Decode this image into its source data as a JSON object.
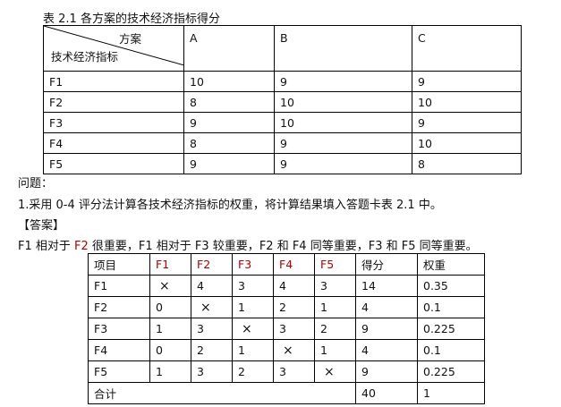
{
  "caption": "表 2.1   各方案的技术经济指标得分",
  "table1": {
    "corner_top": "方案",
    "corner_bottom": "技术经济指标",
    "columns": [
      "A",
      "B",
      "C"
    ],
    "rows": [
      [
        "F1",
        "10",
        "9",
        "9"
      ],
      [
        "F2",
        "8",
        "10",
        "10"
      ],
      [
        "F3",
        "9",
        "10",
        "9"
      ],
      [
        "F4",
        "8",
        "9",
        "10"
      ],
      [
        "F5",
        "9",
        "9",
        "8"
      ]
    ]
  },
  "question_label": "问题：",
  "question": "1.采用 0-4 评分法计算各技术经济指标的权重，将计算结果填入答题卡表 2.1 中。",
  "answer_label": "【答案】",
  "answer_text": [
    "F1",
    " 相对于 ",
    "F2",
    " 很重要，",
    "F1",
    " 相对于 ",
    "F3",
    " 较重要，",
    "F2",
    " 和 ",
    "F4",
    " 同等重要，",
    "F3",
    " 和 ",
    "F5",
    " 同等重要。"
  ],
  "table2": {
    "headers": [
      "项目",
      "F1",
      "F2",
      "F3",
      "F4",
      "F5",
      "得分",
      "权重"
    ],
    "rows": [
      [
        "F1",
        "×",
        "4",
        "3",
        "4",
        "3",
        "14",
        "0.35"
      ],
      [
        "F2",
        "0",
        "×",
        "1",
        "2",
        "1",
        "4",
        "0.1"
      ],
      [
        "F3",
        "1",
        "3",
        "×",
        "3",
        "2",
        "9",
        "0.225"
      ],
      [
        "F4",
        "0",
        "2",
        "1",
        "×",
        "1",
        "4",
        "0.1"
      ],
      [
        "F5",
        "1",
        "3",
        "2",
        "3",
        "×",
        "9",
        "0.225"
      ]
    ],
    "total_label": "合计",
    "total_score": "40",
    "total_weight": "1"
  },
  "colors": {
    "highlight": "#b00000"
  }
}
